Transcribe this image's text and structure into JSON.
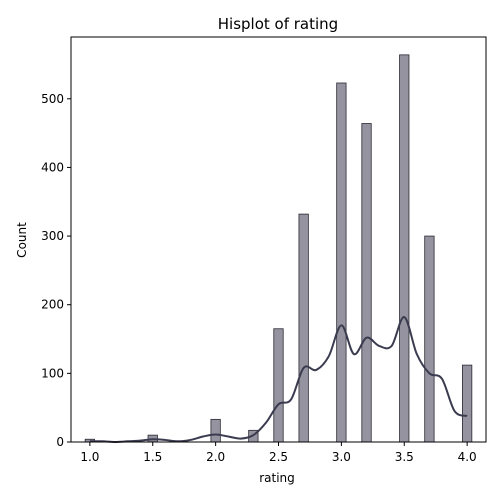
{
  "chart_data": {
    "type": "bar",
    "title": "Hisplot of rating",
    "xlabel": "rating",
    "ylabel": "Count",
    "xlim": [
      0.85,
      4.15
    ],
    "ylim": [
      0,
      590
    ],
    "xticks": [
      "1.0",
      "1.5",
      "2.0",
      "2.5",
      "3.0",
      "3.5",
      "4.0"
    ],
    "yticks": [
      "0",
      "100",
      "200",
      "300",
      "400",
      "500"
    ],
    "bin_width": 0.075,
    "bins": [
      {
        "x": 1.0,
        "count": 4
      },
      {
        "x": 1.5,
        "count": 10
      },
      {
        "x": 2.0,
        "count": 33
      },
      {
        "x": 2.3,
        "count": 17
      },
      {
        "x": 2.5,
        "count": 165
      },
      {
        "x": 2.7,
        "count": 332
      },
      {
        "x": 3.0,
        "count": 523
      },
      {
        "x": 3.2,
        "count": 464
      },
      {
        "x": 3.5,
        "count": 564
      },
      {
        "x": 3.7,
        "count": 300
      },
      {
        "x": 4.0,
        "count": 112
      }
    ],
    "kde": {
      "x": [
        1.0,
        1.1,
        1.2,
        1.3,
        1.4,
        1.5,
        1.6,
        1.7,
        1.8,
        1.9,
        2.0,
        2.1,
        2.2,
        2.3,
        2.4,
        2.5,
        2.6,
        2.7,
        2.8,
        2.9,
        3.0,
        3.1,
        3.2,
        3.3,
        3.4,
        3.5,
        3.6,
        3.7,
        3.8,
        3.9,
        4.0
      ],
      "y": [
        1,
        1,
        0,
        1,
        2,
        4,
        3,
        1,
        3,
        8,
        11,
        8,
        5,
        10,
        28,
        55,
        62,
        108,
        105,
        125,
        170,
        128,
        152,
        140,
        140,
        182,
        128,
        100,
        92,
        45,
        38
      ]
    },
    "grid": false,
    "legend": "none",
    "colors": {
      "bar_fill": "#94939f",
      "bar_edge": "#2a2a33",
      "kde_line": "#3b3b50",
      "axis": "#000000"
    }
  }
}
